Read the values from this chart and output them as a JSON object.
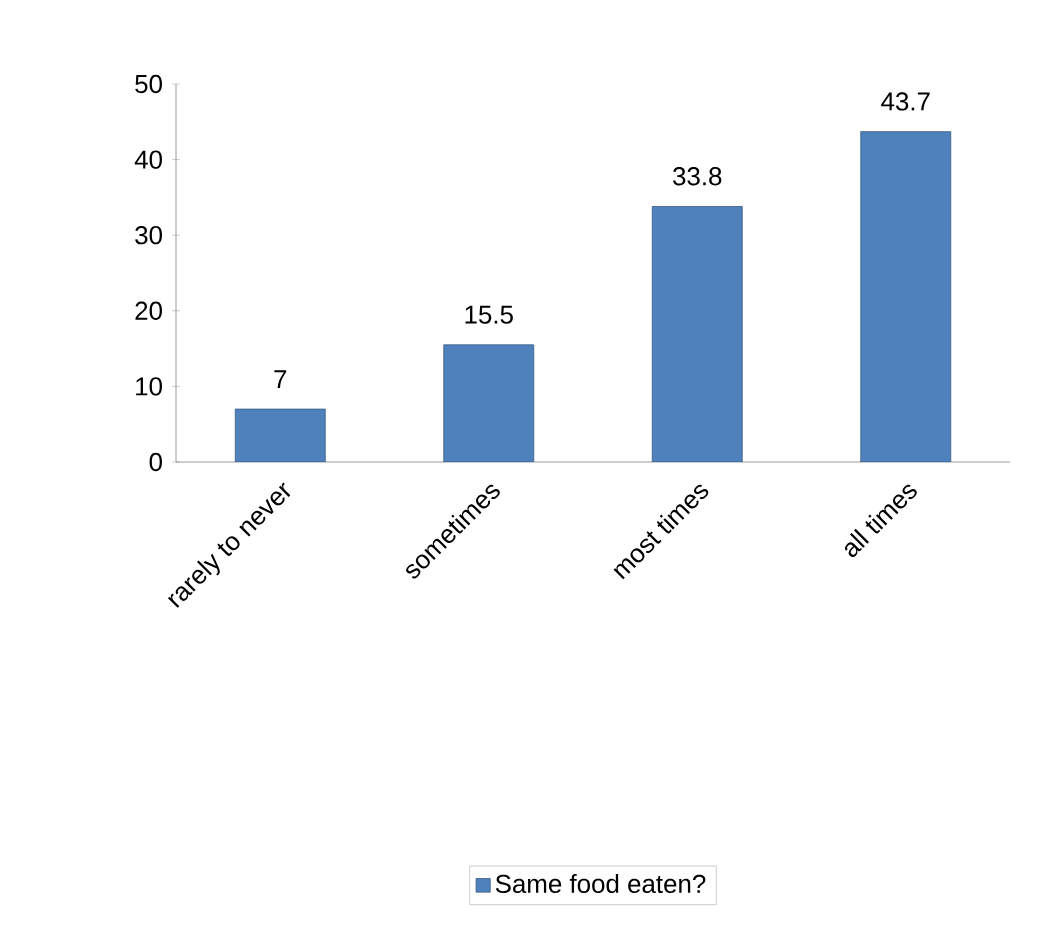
{
  "chart_data": {
    "type": "bar",
    "categories": [
      "rarely to never",
      "sometimes",
      "most times",
      "all times"
    ],
    "series": [
      {
        "name": "Same food eaten?",
        "color": "#4f81bd",
        "values": [
          7,
          15.5,
          33.8,
          43.7
        ]
      }
    ],
    "ylim": [
      0,
      50
    ],
    "yticks": [
      0,
      10,
      20,
      30,
      40,
      50
    ],
    "data_labels": true,
    "grid": false,
    "legend": "bottom"
  }
}
